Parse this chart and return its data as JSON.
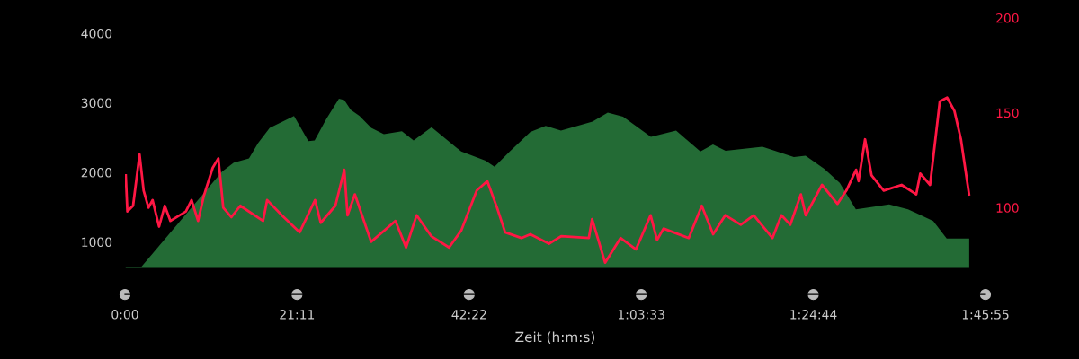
{
  "chart_data": {
    "type": "area",
    "xlabel": "Zeit (h:m:s)",
    "x": [
      0,
      2.0,
      11.95,
      13.39,
      15.27,
      16.38,
      17.82,
      20.81,
      22.58,
      23.35,
      24.79,
      26.34,
      27.0,
      27.78,
      28.88,
      30.32,
      31.87,
      34.09,
      35.53,
      37.74,
      41.39,
      44.38,
      45.49,
      47.37,
      49.91,
      51.79,
      53.67,
      57.55,
      59.43,
      61.31,
      64.74,
      67.84,
      70.83,
      72.38,
      73.93,
      78.47,
      82.34,
      83.78,
      86.1,
      87.98,
      89.97,
      91.86,
      94.07,
      96.39,
      99.49,
      101.15,
      103.92
    ],
    "series": [
      {
        "color": "#236b35",
        "values": [
          640,
          640,
          2010,
          2140,
          2200,
          2420,
          2640,
          2810,
          2450,
          2460,
          2770,
          3060,
          3040,
          2900,
          2810,
          2640,
          2550,
          2590,
          2460,
          2650,
          2300,
          2170,
          2080,
          2300,
          2580,
          2670,
          2600,
          2730,
          2860,
          2800,
          2510,
          2600,
          2300,
          2400,
          2310,
          2370,
          2220,
          2240,
          2050,
          1850,
          1470,
          1500,
          1540,
          1470,
          1300,
          1050,
          1050
        ]
      },
      {
        "type": "line",
        "axis": "y2",
        "color": "#ff1744",
        "x": [
          0.1,
          0.3,
          1.0,
          1.8,
          2.3,
          2.9,
          3.4,
          4.2,
          4.9,
          5.6,
          7.5,
          8.2,
          9.0,
          9.7,
          10.8,
          11.5,
          12.1,
          13.1,
          14.2,
          17.0,
          17.5,
          19.3,
          21.5,
          23.4,
          24.1,
          25.9,
          27.0,
          27.4,
          28.3,
          30.3,
          33.3,
          34.6,
          35.9,
          37.7,
          39.9,
          41.4,
          43.3,
          44.6,
          45.8,
          46.8,
          48.8,
          49.9,
          52.2,
          53.7,
          57.1,
          57.5,
          59.1,
          61.0,
          62.9,
          64.7,
          65.5,
          66.3,
          69.4,
          71.0,
          72.4,
          73.9,
          75.8,
          77.4,
          79.7,
          80.8,
          81.9,
          83.2,
          83.8,
          85.8,
          87.7,
          88.8,
          90.0,
          90.3,
          91.1,
          91.9,
          93.4,
          95.6,
          97.4,
          97.9,
          99.1,
          100.3,
          101.2,
          102.1,
          102.9,
          103.9
        ],
        "values": [
          117,
          98,
          101,
          128,
          109,
          100,
          104,
          90,
          101,
          93,
          98,
          104,
          93,
          106,
          121,
          126,
          100,
          95,
          101,
          93,
          104,
          96,
          87,
          104,
          92,
          101,
          120,
          96,
          107,
          82,
          93,
          79,
          96,
          85,
          79,
          88,
          109,
          114,
          100,
          87,
          84,
          86,
          81,
          85,
          84,
          94,
          71,
          84,
          78,
          96,
          83,
          89,
          84,
          101,
          86,
          96,
          91,
          96,
          84,
          96,
          91,
          107,
          96,
          112,
          102,
          109,
          120,
          114,
          136,
          117,
          109,
          112,
          107,
          118,
          112,
          156,
          158,
          151,
          136,
          107
        ]
      }
    ],
    "xlim": [
      0,
      105.92
    ],
    "xticks": [
      {
        "value": 0,
        "label": "0:00"
      },
      {
        "value": 21.18,
        "label": "21:11"
      },
      {
        "value": 42.37,
        "label": "42:22"
      },
      {
        "value": 63.55,
        "label": "1:03:33"
      },
      {
        "value": 84.73,
        "label": "1:24:44"
      },
      {
        "value": 105.92,
        "label": "1:45:55"
      }
    ],
    "ylim": [
      620,
      4220
    ],
    "yticks": [
      1000,
      2000,
      3000,
      4000
    ],
    "y2lim": [
      68,
      200
    ],
    "y2ticks": [
      100,
      150,
      200
    ],
    "grid": false
  }
}
